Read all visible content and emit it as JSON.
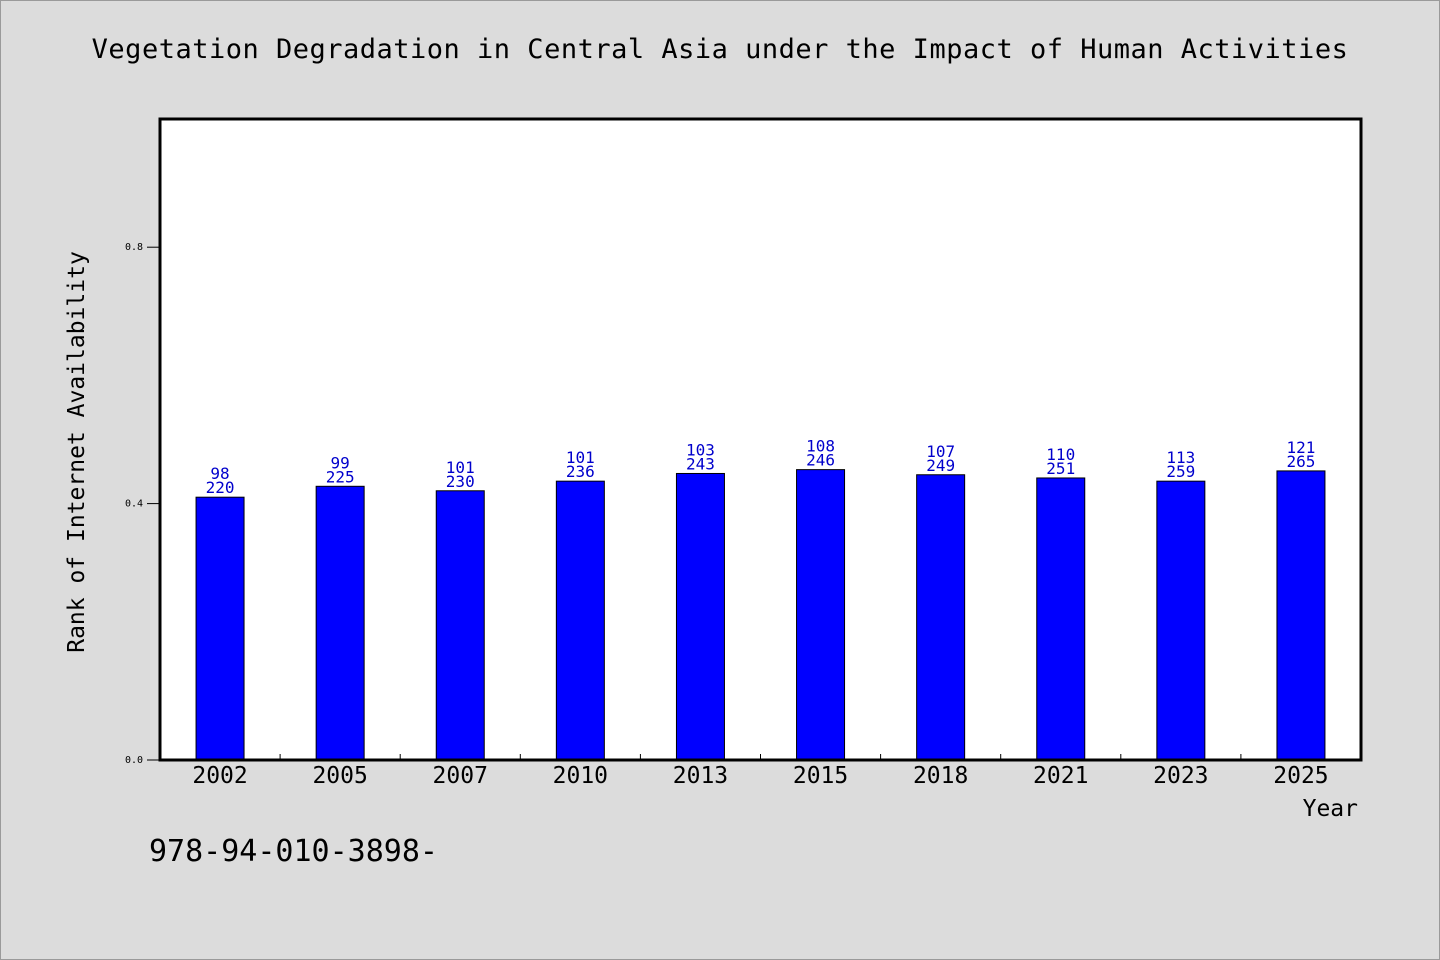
{
  "page": {
    "title": "Vegetation Degradation in Central Asia under the Impact of Human Activities",
    "footer_code": "978-94-010-3898-"
  },
  "colors": {
    "background": "#dcdcdc",
    "plot_background": "#ffffff",
    "bar_fill": "#0000ff",
    "data_label": "#0000cc"
  },
  "chart_data": {
    "type": "bar",
    "title": "Vegetation Degradation in Central Asia under the Impact of Human Activities",
    "xlabel": "Year",
    "ylabel": "Rank of Internet Availability",
    "categories": [
      "2002",
      "2005",
      "2007",
      "2010",
      "2013",
      "2015",
      "2018",
      "2021",
      "2023",
      "2025"
    ],
    "values": [
      0.41,
      0.427,
      0.42,
      0.435,
      0.447,
      0.453,
      0.445,
      0.44,
      0.435,
      0.451
    ],
    "labels_top": [
      "98",
      "99",
      "101",
      "101",
      "103",
      "108",
      "107",
      "110",
      "113",
      "121"
    ],
    "labels_bottom": [
      "220",
      "225",
      "230",
      "236",
      "243",
      "246",
      "249",
      "251",
      "259",
      "265"
    ],
    "yticks": [
      0.0,
      0.4,
      0.8
    ],
    "ytick_labels": [
      "0.0",
      "0.4",
      "0.8"
    ],
    "ylim": [
      0,
      1.0
    ],
    "grid": false,
    "legend": "none"
  }
}
